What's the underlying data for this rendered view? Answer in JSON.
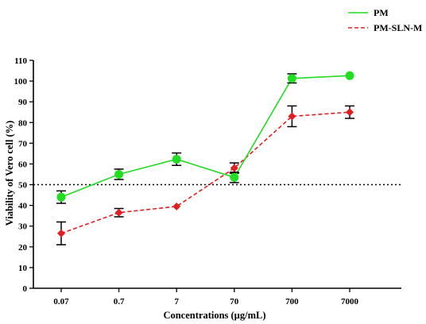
{
  "chart_data": {
    "type": "line",
    "xlabel": "Concentrations (µg/mL)",
    "ylabel": "Viability of Vero cell (%)",
    "ylim": [
      0,
      110
    ],
    "yticks": [
      0,
      10,
      20,
      30,
      40,
      50,
      60,
      70,
      80,
      90,
      100,
      110
    ],
    "categories": [
      "0.07",
      "0.7",
      "7",
      "70",
      "700",
      "7000"
    ],
    "reference_line": 50,
    "legend_position": "top-right",
    "series": [
      {
        "name": "PM",
        "color": "#22dd22",
        "line": "solid",
        "marker": "circle",
        "values": [
          44,
          55,
          62.3,
          53.5,
          101.3,
          102.6
        ],
        "errors": [
          3,
          2.5,
          3,
          2.5,
          2.2,
          0
        ]
      },
      {
        "name": "PM-SLN-M",
        "color": "#e02020",
        "line": "dashed",
        "marker": "diamond",
        "values": [
          26.5,
          36.5,
          39.5,
          58,
          83,
          85
        ],
        "errors": [
          5.5,
          2,
          0,
          2.5,
          5,
          3
        ]
      }
    ]
  }
}
